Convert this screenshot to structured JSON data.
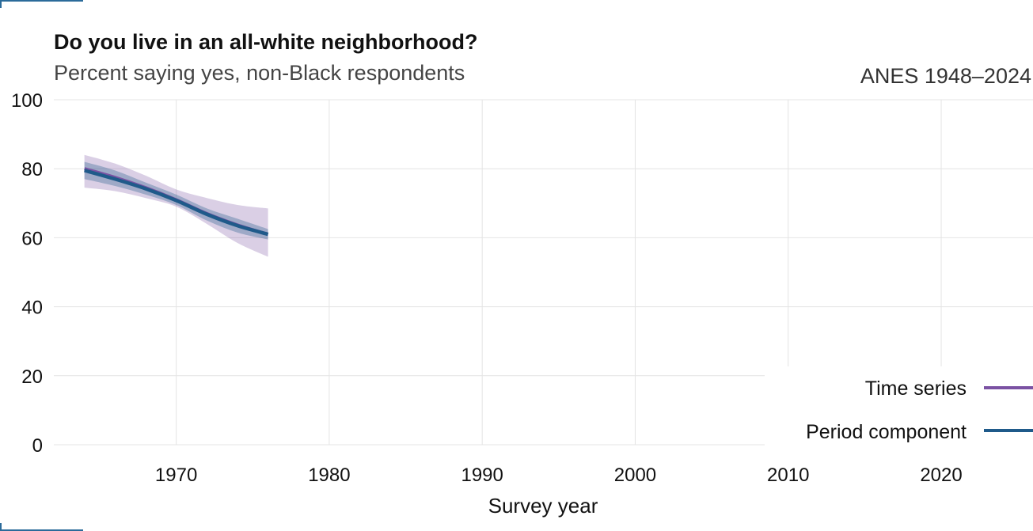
{
  "chart_data": {
    "type": "line",
    "title": "Do you live in an all-white neighborhood?",
    "subtitle": "Percent saying yes, non-Black respondents",
    "source": "ANES 1948–2024",
    "xlabel": "Survey year",
    "ylabel": "",
    "xlim": [
      1962,
      2026
    ],
    "ylim": [
      0,
      100
    ],
    "x_ticks": [
      1970,
      1980,
      1990,
      2000,
      2010,
      2020
    ],
    "y_ticks": [
      0,
      20,
      40,
      60,
      80,
      100
    ],
    "grid": true,
    "legend_position": "bottom-right",
    "series": [
      {
        "name": "Time series",
        "color": "#7b52a3",
        "x": [
          1964,
          1966,
          1968,
          1970,
          1972,
          1974,
          1976
        ],
        "y": [
          80.0,
          77.5,
          74.5,
          71.0,
          67.0,
          63.7,
          61.0
        ],
        "lower": [
          74.5,
          73.5,
          71.5,
          69.0,
          64.0,
          58.5,
          54.5
        ],
        "upper": [
          84.0,
          81.5,
          78.0,
          74.0,
          71.5,
          69.5,
          68.5
        ]
      },
      {
        "name": "Period component",
        "color": "#1f5a8a",
        "x": [
          1964,
          1966,
          1968,
          1970,
          1972,
          1974,
          1976
        ],
        "y": [
          79.5,
          77.0,
          74.2,
          70.8,
          66.8,
          63.5,
          61.0
        ],
        "lower": [
          77.0,
          75.0,
          72.5,
          69.5,
          65.0,
          61.5,
          59.5
        ],
        "upper": [
          82.0,
          79.5,
          76.0,
          72.5,
          68.5,
          65.5,
          62.5
        ]
      }
    ]
  }
}
